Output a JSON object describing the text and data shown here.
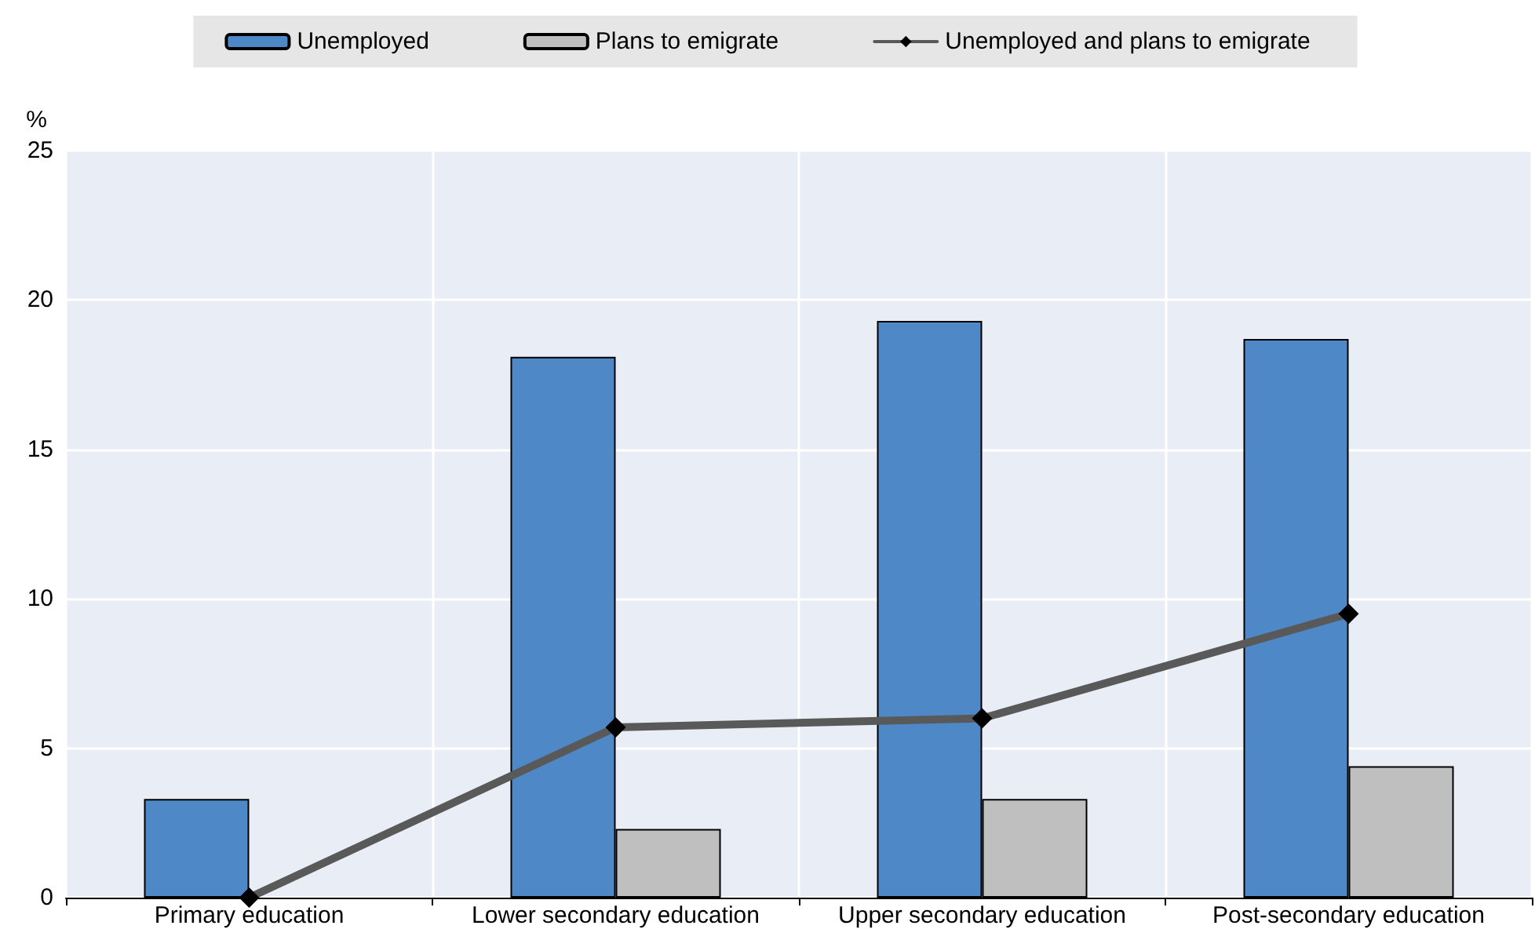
{
  "chart_data": {
    "type": "bar",
    "ylabel": "%",
    "categories": [
      "Primary education",
      "Lower secondary education",
      "Upper secondary education",
      "Post-secondary education"
    ],
    "series": [
      {
        "name": "Unemployed",
        "color": "#4e88c7",
        "values": [
          3.3,
          18.1,
          19.3,
          18.7
        ]
      },
      {
        "name": "Plans to emigrate",
        "color": "#bfbfbf",
        "values": [
          null,
          2.3,
          3.3,
          4.4
        ]
      },
      {
        "name": "Unemployed and plans to emigrate",
        "type": "line",
        "color": "#595959",
        "values": [
          0,
          5.7,
          6.0,
          9.5
        ],
        "marker": "diamond"
      }
    ],
    "ylim": [
      0,
      25
    ],
    "yticks": [
      0,
      5,
      10,
      15,
      20,
      25
    ],
    "grid": true,
    "legend": "top"
  }
}
